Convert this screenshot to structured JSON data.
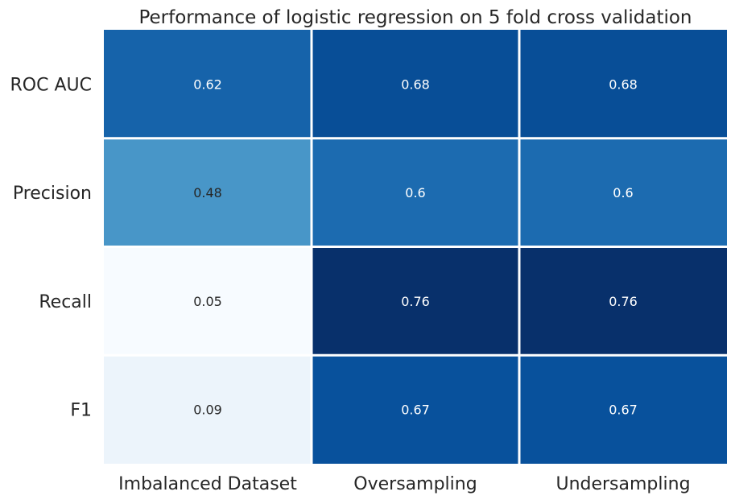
{
  "chart_data": {
    "type": "heatmap",
    "title": "Performance of logistic regression on 5 fold cross validation",
    "columns": [
      "Imbalanced Dataset",
      "Oversampling",
      "Undersampling"
    ],
    "rows": [
      "ROC AUC",
      "Precision",
      "Recall",
      "F1"
    ],
    "values": [
      [
        0.62,
        0.68,
        0.68
      ],
      [
        0.48,
        0.6,
        0.6
      ],
      [
        0.05,
        0.76,
        0.76
      ],
      [
        0.09,
        0.67,
        0.67
      ]
    ],
    "value_labels": [
      [
        "0.62",
        "0.68",
        "0.68"
      ],
      [
        "0.48",
        "0.6",
        "0.6"
      ],
      [
        "0.05",
        "0.76",
        "0.76"
      ],
      [
        "0.09",
        "0.67",
        "0.67"
      ]
    ],
    "colormap": "Blues",
    "vmin": 0.05,
    "vmax": 0.76,
    "colorbar": false,
    "grid_line_color": "#ffffff",
    "annotation_color_light": "#ffffff",
    "annotation_color_dark": "#262626"
  }
}
